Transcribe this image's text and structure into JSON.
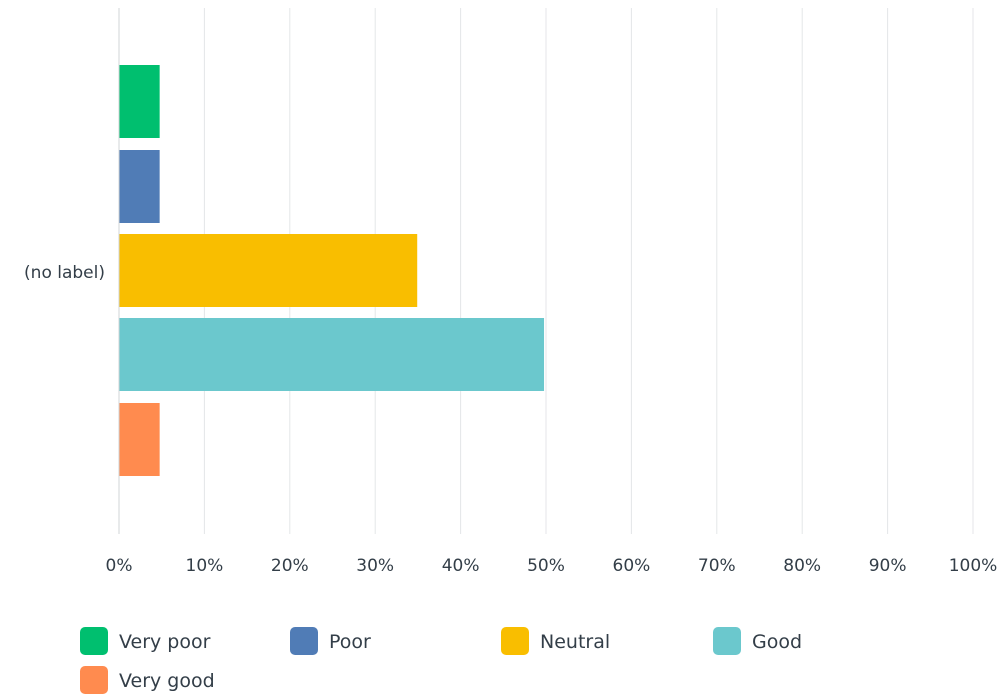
{
  "chart_data": {
    "type": "bar",
    "orientation": "horizontal",
    "categories": [
      "(no label)"
    ],
    "series": [
      {
        "name": "Very poor",
        "values": [
          4.76
        ],
        "color": "#00bf6f"
      },
      {
        "name": "Poor",
        "values": [
          4.76
        ],
        "color": "#507cb6"
      },
      {
        "name": "Neutral",
        "values": [
          34.92
        ],
        "color": "#f9be00"
      },
      {
        "name": "Good",
        "values": [
          49.77
        ],
        "color": "#6bc8cd"
      },
      {
        "name": "Very good",
        "values": [
          4.76
        ],
        "color": "#ff8b4f"
      }
    ],
    "xlim": [
      0,
      100
    ],
    "x_ticks": [
      "0%",
      "10%",
      "20%",
      "30%",
      "40%",
      "50%",
      "60%",
      "70%",
      "80%",
      "90%",
      "100%"
    ],
    "x_tick_values": [
      0,
      10,
      20,
      30,
      40,
      50,
      60,
      70,
      80,
      90,
      100
    ],
    "grid": true,
    "legend_position": "bottom-left",
    "title": "",
    "xlabel": "",
    "ylabel": ""
  }
}
